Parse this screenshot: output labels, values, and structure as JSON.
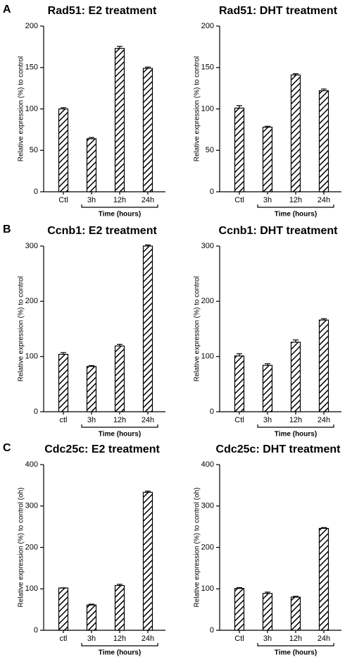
{
  "chart_data": [
    {
      "type": "bar",
      "panel": "A",
      "title": "Rad51: E2 treatment",
      "y_label": "Relative expression (%) to control",
      "x_label": "Time (hours)",
      "categories": [
        "Ctl",
        "3h",
        "12h",
        "24h"
      ],
      "values": [
        100,
        64,
        173,
        149
      ],
      "errors": [
        1.5,
        1.5,
        2.5,
        1.5
      ],
      "ylim": [
        0,
        200
      ],
      "yticks": [
        0,
        50,
        100,
        150,
        200
      ],
      "color": "#000000"
    },
    {
      "type": "bar",
      "title": "Rad51: DHT treatment",
      "y_label": "Relative expression (%) to control",
      "x_label": "Time (hours)",
      "categories": [
        "Ctl",
        "3h",
        "12h",
        "24h"
      ],
      "values": [
        101,
        78,
        141,
        122
      ],
      "errors": [
        3,
        1,
        1.5,
        2
      ],
      "ylim": [
        0,
        200
      ],
      "yticks": [
        0,
        50,
        100,
        150,
        200
      ],
      "color": "#000000"
    },
    {
      "type": "bar",
      "panel": "B",
      "title": "Ccnb1: E2 treatment",
      "y_label": "Relative expression (%) to control",
      "x_label": "Time (hours)",
      "categories": [
        "ctl",
        "3h",
        "12h",
        "24h"
      ],
      "values": [
        104,
        82,
        119,
        300
      ],
      "errors": [
        3,
        1.5,
        3,
        2
      ],
      "ylim": [
        0,
        300
      ],
      "yticks": [
        0,
        100,
        200,
        300
      ],
      "color": "#000000"
    },
    {
      "type": "bar",
      "title": "Ccnb1: DHT treatment",
      "y_label": "Relative expression (%) to control",
      "x_label": "Time (hours)",
      "categories": [
        "Ctl",
        "3h",
        "12h",
        "24h"
      ],
      "values": [
        101,
        84,
        126,
        166
      ],
      "errors": [
        4,
        3,
        4,
        2.5
      ],
      "ylim": [
        0,
        300
      ],
      "yticks": [
        0,
        100,
        200,
        300
      ],
      "color": "#000000"
    },
    {
      "type": "bar",
      "panel": "C",
      "title": "Cdc25c: E2 treatment",
      "y_label": "Relative expression (%) to control (oh)",
      "x_label": "Time (hours)",
      "categories": [
        "ctl",
        "3h",
        "12h",
        "24h"
      ],
      "values": [
        102,
        61,
        108,
        333
      ],
      "errors": [
        0.5,
        2,
        3,
        3
      ],
      "ylim": [
        0,
        400
      ],
      "yticks": [
        0,
        100,
        200,
        300,
        400
      ],
      "color": "#000000"
    },
    {
      "type": "bar",
      "title": "Cdc25c: DHT treatment",
      "y_label": "Relative expression (%) to control (oh)",
      "x_label": "Time (hours)",
      "categories": [
        "Ctl",
        "3h",
        "12h",
        "24h"
      ],
      "values": [
        101,
        89,
        80,
        246
      ],
      "errors": [
        2,
        3,
        2,
        2
      ],
      "ylim": [
        0,
        400
      ],
      "yticks": [
        0,
        100,
        200,
        300,
        400
      ],
      "color": "#000000"
    }
  ]
}
